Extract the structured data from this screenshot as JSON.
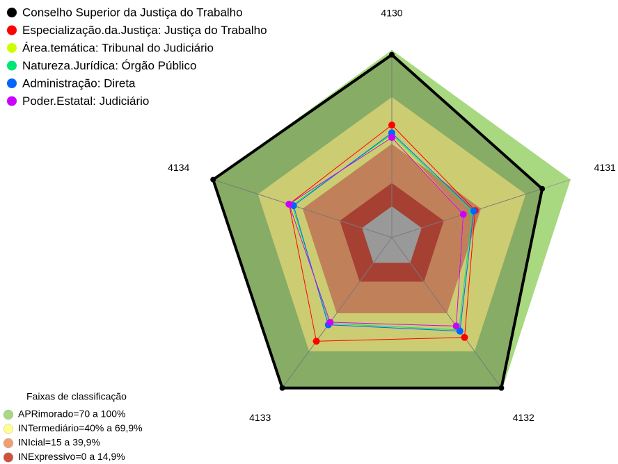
{
  "chart_data": {
    "type": "radar",
    "categories": [
      "4130",
      "4131",
      "4132",
      "4133",
      "4134"
    ],
    "ylim": [
      -20,
      100
    ],
    "series": [
      {
        "name": "Conselho Superior da Justiça do Trabalho",
        "color": "#000000",
        "values": [
          97,
          81,
          99,
          99,
          100
        ]
      },
      {
        "name": "Especialização.da.Justiça: Justiça do Trabalho",
        "color": "#ff0000",
        "values": [
          52,
          36,
          59,
          62,
          49
        ]
      },
      {
        "name": "Área.temática: Tribunal do Judiciário",
        "color": "#ccff00",
        "values": [
          45,
          28,
          50,
          47,
          48
        ]
      },
      {
        "name": "Natureza.Jurídica: Órgão Público",
        "color": "#00e676",
        "values": [
          46,
          34,
          53,
          48,
          47
        ]
      },
      {
        "name": "Administração: Direta",
        "color": "#0066ff",
        "values": [
          47,
          35,
          54,
          49,
          46
        ]
      },
      {
        "name": "Poder.Estatal: Judiciário",
        "color": "#cc00ff",
        "values": [
          44,
          28,
          50,
          47,
          49
        ]
      }
    ],
    "bands_title": "Faixas de classificação",
    "bands": [
      {
        "label": "APRimorado=70 a 100%",
        "color": "#a8d880",
        "min": 70,
        "max": 100
      },
      {
        "label": "INTermediário=40% a 69,9%",
        "color": "#ffff90",
        "min": 40,
        "max": 69.9
      },
      {
        "label": "INIcial=15 a 39,9%",
        "color": "#f0a070",
        "min": 15,
        "max": 39.9
      },
      {
        "label": "INExpressivo=0 a 14,9%",
        "color": "#d05040",
        "min": 0,
        "max": 14.9
      }
    ]
  }
}
